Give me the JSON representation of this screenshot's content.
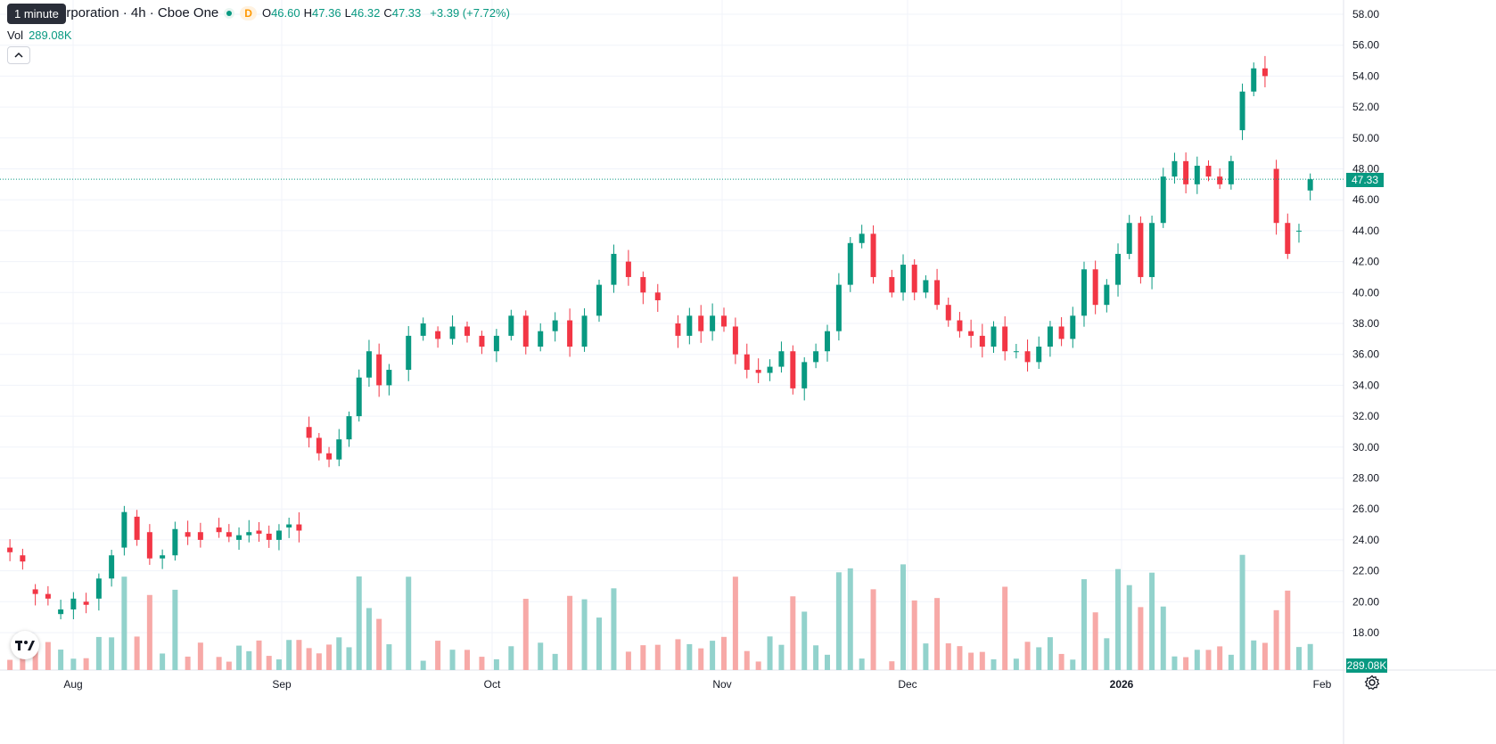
{
  "legend": {
    "tooltip": "1 minute",
    "title": "orporation · 4h · Cboe One",
    "d_badge": "D",
    "ohlc": [
      {
        "key": "O",
        "value": "46.60"
      },
      {
        "key": "H",
        "value": "47.36"
      },
      {
        "key": "L",
        "value": "46.32"
      },
      {
        "key": "C",
        "value": "47.33"
      }
    ],
    "change": "+3.39 (+7.72%)",
    "volume_label": "Vol",
    "volume_value": "289.08K",
    "collapse_icon": "chevron-up-icon"
  },
  "price_scale": {
    "labels": [
      "58.00",
      "56.00",
      "54.00",
      "52.00",
      "50.00",
      "48.00",
      "46.00",
      "44.00",
      "42.00",
      "40.00",
      "38.00",
      "36.00",
      "34.00",
      "32.00",
      "30.00",
      "28.00",
      "26.00",
      "24.00",
      "22.00",
      "20.00",
      "18.00"
    ],
    "current_price": "47.33",
    "current_volume": "289.08K"
  },
  "time_scale": {
    "labels": [
      {
        "text": "Aug",
        "bold": false
      },
      {
        "text": "Sep",
        "bold": false
      },
      {
        "text": "Oct",
        "bold": false
      },
      {
        "text": "Nov",
        "bold": false
      },
      {
        "text": "Dec",
        "bold": false
      },
      {
        "text": "2026",
        "bold": true
      },
      {
        "text": "Feb",
        "bold": false
      }
    ]
  },
  "colors": {
    "up": "#089981",
    "down": "#f23645",
    "vol_up": "#92d2cc",
    "vol_down": "#f7a9a7",
    "grid": "#f0f3fa",
    "text": "#131722"
  },
  "logo_icon": "tradingview-logo",
  "settings_icon": "gear-icon",
  "chart_data": {
    "type": "candlestick",
    "timeframe": "4h",
    "y_range": [
      18,
      58
    ],
    "series": [
      {
        "name": "Aug",
        "points": [
          [
            23.5,
            23.2
          ],
          [
            23.0,
            22.6
          ],
          [
            20.8,
            20.5
          ],
          [
            20.5,
            20.2
          ],
          [
            19.2,
            19.5
          ],
          [
            19.5,
            20.2
          ],
          [
            20.0,
            19.8
          ],
          [
            20.2,
            21.5
          ],
          [
            21.5,
            23.0
          ],
          [
            23.5,
            25.8
          ],
          [
            25.5,
            24.0
          ],
          [
            24.5,
            22.8
          ],
          [
            22.8,
            23.0
          ],
          [
            23.0,
            24.7
          ],
          [
            24.5,
            24.2
          ],
          [
            24.5,
            24.0
          ]
        ]
      },
      {
        "name": "Sep",
        "points": [
          [
            24.8,
            24.5
          ],
          [
            24.5,
            24.2
          ],
          [
            24.0,
            24.3
          ],
          [
            24.3,
            24.5
          ],
          [
            24.6,
            24.4
          ],
          [
            24.4,
            24.0
          ],
          [
            24.0,
            24.6
          ],
          [
            24.8,
            25.0
          ],
          [
            25.0,
            24.6
          ],
          [
            31.3,
            30.6
          ],
          [
            30.6,
            29.6
          ],
          [
            29.6,
            29.2
          ],
          [
            29.2,
            30.5
          ],
          [
            30.5,
            32.0
          ],
          [
            32.0,
            34.5
          ],
          [
            34.5,
            36.2
          ],
          [
            36.0,
            34.0
          ],
          [
            34.0,
            35.0
          ]
        ]
      },
      {
        "name": "Oct",
        "points": [
          [
            35.0,
            37.2
          ],
          [
            37.2,
            38.0
          ],
          [
            37.5,
            37.0
          ],
          [
            37.0,
            37.8
          ],
          [
            37.8,
            37.2
          ],
          [
            37.2,
            36.5
          ],
          [
            36.2,
            37.2
          ],
          [
            37.2,
            38.5
          ],
          [
            38.5,
            36.5
          ],
          [
            36.5,
            37.5
          ],
          [
            37.5,
            38.2
          ],
          [
            38.2,
            36.5
          ],
          [
            36.5,
            38.5
          ],
          [
            38.5,
            40.5
          ],
          [
            40.5,
            42.5
          ],
          [
            42.0,
            41.0
          ],
          [
            41.0,
            40.0
          ],
          [
            40.0,
            39.5
          ]
        ]
      },
      {
        "name": "Nov",
        "points": [
          [
            38.0,
            37.2
          ],
          [
            37.2,
            38.5
          ],
          [
            38.5,
            37.5
          ],
          [
            37.5,
            38.5
          ],
          [
            38.5,
            37.8
          ],
          [
            37.8,
            36.0
          ],
          [
            36.0,
            35.0
          ],
          [
            35.0,
            34.8
          ],
          [
            34.8,
            35.2
          ],
          [
            35.2,
            36.2
          ],
          [
            36.2,
            33.8
          ],
          [
            33.8,
            35.5
          ],
          [
            35.5,
            36.2
          ],
          [
            36.2,
            37.5
          ],
          [
            37.5,
            40.5
          ],
          [
            40.5,
            43.2
          ],
          [
            43.2,
            43.8
          ],
          [
            43.8,
            41.0
          ]
        ]
      },
      {
        "name": "Dec",
        "points": [
          [
            41.0,
            40.0
          ],
          [
            40.0,
            41.8
          ],
          [
            41.8,
            40.0
          ],
          [
            40.0,
            40.8
          ],
          [
            40.8,
            39.2
          ],
          [
            39.2,
            38.2
          ],
          [
            38.2,
            37.5
          ],
          [
            37.5,
            37.2
          ],
          [
            37.2,
            36.5
          ],
          [
            36.5,
            37.8
          ],
          [
            37.8,
            36.2
          ],
          [
            36.2,
            36.2
          ],
          [
            36.2,
            35.5
          ],
          [
            35.5,
            36.5
          ],
          [
            36.5,
            37.8
          ],
          [
            37.8,
            37.0
          ],
          [
            37.0,
            38.5
          ],
          [
            38.5,
            41.5
          ],
          [
            41.5,
            39.2
          ],
          [
            39.2,
            40.5
          ],
          [
            40.5,
            42.5
          ],
          [
            42.5,
            44.5
          ],
          [
            44.5,
            41.0
          ],
          [
            41.0,
            44.5
          ],
          [
            44.5,
            47.5
          ],
          [
            47.5,
            48.5
          ],
          [
            48.5,
            47.0
          ],
          [
            47.0,
            48.2
          ],
          [
            48.2,
            47.5
          ],
          [
            47.5,
            47.0
          ],
          [
            47.0,
            48.5
          ],
          [
            50.5,
            53.0
          ],
          [
            53.0,
            54.5
          ],
          [
            54.5,
            54.0
          ],
          [
            48.0,
            44.5
          ],
          [
            44.5,
            42.5
          ],
          [
            44.0,
            44.0
          ],
          [
            46.6,
            47.33
          ]
        ]
      }
    ],
    "volume_note": "Volume histogram bars below price"
  }
}
